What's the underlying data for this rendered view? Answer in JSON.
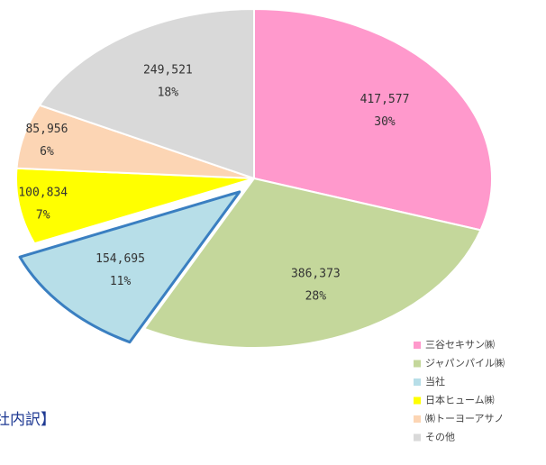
{
  "chart_data": {
    "type": "pie",
    "categories": [
      "三谷セキサン㈱",
      "ジャパンパイル㈱",
      "当社",
      "日本ヒューム㈱",
      "㈱トーヨーアサノ",
      "その他"
    ],
    "values": [
      417577,
      386373,
      154695,
      100834,
      85956,
      249521
    ],
    "value_labels": [
      "417,577",
      "386,373",
      "154,695",
      "100,834",
      "85,956",
      "249,521"
    ],
    "percent_values": [
      30,
      28,
      11,
      7,
      6,
      18
    ],
    "percent_labels": [
      "30%",
      "28%",
      "11%",
      "7%",
      "6%",
      "18%"
    ],
    "colors": [
      "#ff99cc",
      "#c4d79b",
      "#b7dee8",
      "#ffff00",
      "#fcd5b4",
      "#d9d9d9"
    ],
    "exploded": [
      2
    ],
    "legend": "bottom-right",
    "caption": "社内訳】"
  }
}
